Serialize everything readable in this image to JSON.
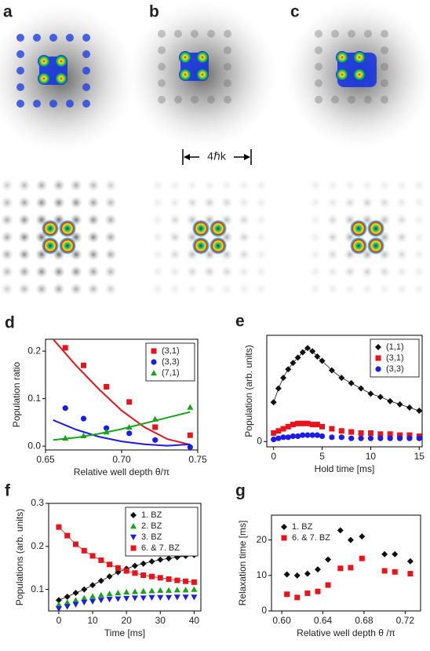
{
  "images": {
    "labels": [
      "a",
      "b",
      "c"
    ],
    "scale_label": "4ℏk"
  },
  "chart_data": [
    {
      "type": "scatter",
      "label": "d",
      "ylabel": "Population ratio",
      "xlabel": "Relative well depth  θ/π",
      "xlim": [
        0.65,
        0.75
      ],
      "xticks": [
        0.65,
        {
          "value": 0.7,
          "label": "0.70"
        },
        0.75
      ],
      "ylim": [
        -0.008,
        0.225
      ],
      "yticks": [
        {
          "value": 0,
          "label": "0.0"
        },
        0.1,
        0.2
      ],
      "legend": "top-right",
      "legend_box": true,
      "series": [
        {
          "name": "(3,1)",
          "color": "#e8141c",
          "marker": "square",
          "x": [
            0.663,
            0.675,
            0.69,
            0.705,
            0.722,
            0.745
          ],
          "values": [
            0.207,
            0.17,
            0.125,
            0.093,
            0.04,
            0.023
          ]
        },
        {
          "name": "(3,3)",
          "color": "#1c1ce6",
          "marker": "circle",
          "x": [
            0.663,
            0.675,
            0.69,
            0.705,
            0.722,
            0.745
          ],
          "values": [
            0.08,
            0.058,
            0.038,
            0.027,
            0.013,
            -0.002
          ]
        },
        {
          "name": "(7,1)",
          "color": "#1aa31a",
          "marker": "triangle",
          "x": [
            0.663,
            0.675,
            0.69,
            0.705,
            0.722,
            0.745
          ],
          "values": [
            0.017,
            0.022,
            0.03,
            0.04,
            0.057,
            0.082
          ]
        }
      ],
      "fits": [
        {
          "color": "#e8141c",
          "x": [
            0.655,
            0.67,
            0.685,
            0.7,
            0.715,
            0.73,
            0.745
          ],
          "values": [
            0.225,
            0.17,
            0.12,
            0.075,
            0.04,
            0.015,
            0.003
          ]
        },
        {
          "color": "#1c1ce6",
          "x": [
            0.655,
            0.67,
            0.685,
            0.7,
            0.715,
            0.73,
            0.745
          ],
          "values": [
            0.055,
            0.035,
            0.02,
            0.01,
            0.004,
            0.001,
            0.004
          ]
        },
        {
          "color": "#1aa31a",
          "x": [
            0.655,
            0.67,
            0.685,
            0.7,
            0.715,
            0.73,
            0.745
          ],
          "values": [
            0.013,
            0.018,
            0.026,
            0.036,
            0.048,
            0.06,
            0.072
          ]
        }
      ]
    },
    {
      "type": "scatter",
      "label": "e",
      "ylabel": "Population (arb. units)",
      "xlabel": "Hold time [ms]",
      "xlim": [
        -0.7,
        15.3
      ],
      "xticks": [
        0,
        5,
        10,
        15
      ],
      "ylim": [
        -0.05,
        1.0
      ],
      "yticks": [
        0
      ],
      "legend": "top-right",
      "legend_box": true,
      "series": [
        {
          "name": "(1,1)",
          "color": "#111111",
          "marker": "diamond",
          "line": true,
          "x": [
            0,
            0.5,
            1,
            1.5,
            2,
            2.5,
            3,
            3.5,
            4,
            4.5,
            5,
            6,
            7,
            8,
            9,
            10,
            11,
            12,
            13,
            14,
            15
          ],
          "values": [
            0.37,
            0.5,
            0.6,
            0.68,
            0.74,
            0.79,
            0.84,
            0.88,
            0.85,
            0.8,
            0.76,
            0.67,
            0.6,
            0.55,
            0.5,
            0.45,
            0.42,
            0.38,
            0.35,
            0.32,
            0.29
          ]
        },
        {
          "name": "(3,1)",
          "color": "#e8141c",
          "marker": "square",
          "x": [
            0,
            0.5,
            1,
            1.5,
            2,
            2.5,
            3,
            3.5,
            4,
            4.5,
            5,
            6,
            7,
            8,
            9,
            10,
            11,
            12,
            13,
            14,
            15
          ],
          "values": [
            0.08,
            0.1,
            0.12,
            0.14,
            0.16,
            0.17,
            0.17,
            0.17,
            0.16,
            0.16,
            0.14,
            0.12,
            0.1,
            0.09,
            0.08,
            0.08,
            0.07,
            0.07,
            0.06,
            0.06,
            0.05
          ]
        },
        {
          "name": "(3,3)",
          "color": "#1c1ce6",
          "marker": "circle",
          "x": [
            0,
            0.5,
            1,
            1.5,
            2,
            2.5,
            3,
            3.5,
            4,
            4.5,
            5,
            6,
            7,
            8,
            9,
            10,
            11,
            12,
            13,
            14,
            15
          ],
          "values": [
            0.02,
            0.03,
            0.04,
            0.04,
            0.05,
            0.05,
            0.06,
            0.06,
            0.06,
            0.06,
            0.05,
            0.04,
            0.04,
            0.03,
            0.03,
            0.03,
            0.03,
            0.03,
            0.03,
            0.03,
            0.03
          ]
        }
      ]
    },
    {
      "type": "scatter",
      "label": "f",
      "ylabel": "Populations (arb. units)",
      "xlabel": "Time [ms]",
      "xlim": [
        -3,
        42
      ],
      "xticks": [
        0,
        10,
        20,
        30,
        40
      ],
      "ylim": [
        0.05,
        0.3
      ],
      "yticks": [
        0.1,
        0.2,
        0.3
      ],
      "legend": "top-right",
      "legend_box": true,
      "series": [
        {
          "name": "1. BZ",
          "color": "#111111",
          "marker": "diamond",
          "line": true,
          "x": [
            0,
            2.5,
            5,
            7.5,
            10,
            12.5,
            15,
            17.5,
            20,
            22.5,
            25,
            27.5,
            30,
            32.5,
            35,
            37.5,
            40
          ],
          "values": [
            0.075,
            0.083,
            0.092,
            0.1,
            0.11,
            0.12,
            0.13,
            0.14,
            0.148,
            0.155,
            0.16,
            0.165,
            0.169,
            0.172,
            0.175,
            0.178,
            0.18
          ]
        },
        {
          "name": "2. BZ",
          "color": "#1aa31a",
          "marker": "triangle",
          "x": [
            0,
            2.5,
            5,
            7.5,
            10,
            12.5,
            15,
            17.5,
            20,
            22.5,
            25,
            27.5,
            30,
            32.5,
            35,
            37.5,
            40
          ],
          "values": [
            0.065,
            0.07,
            0.075,
            0.08,
            0.084,
            0.087,
            0.09,
            0.092,
            0.094,
            0.095,
            0.096,
            0.097,
            0.098,
            0.098,
            0.099,
            0.099,
            0.1
          ]
        },
        {
          "name": "3. BZ",
          "color": "#1c1ce6",
          "marker": "triangle-down",
          "x": [
            0,
            2.5,
            5,
            7.5,
            10,
            12.5,
            15,
            17.5,
            20,
            22.5,
            25,
            27.5,
            30,
            32.5,
            35,
            37.5,
            40
          ],
          "values": [
            0.055,
            0.06,
            0.065,
            0.07,
            0.072,
            0.075,
            0.077,
            0.078,
            0.079,
            0.08,
            0.08,
            0.081,
            0.081,
            0.081,
            0.082,
            0.082,
            0.082
          ]
        },
        {
          "name": "6. & 7. BZ",
          "color": "#e8141c",
          "marker": "square",
          "line": true,
          "x": [
            0,
            2.5,
            5,
            7.5,
            10,
            12.5,
            15,
            17.5,
            20,
            22.5,
            25,
            27.5,
            30,
            32.5,
            35,
            37.5,
            40
          ],
          "values": [
            0.245,
            0.225,
            0.205,
            0.19,
            0.178,
            0.168,
            0.158,
            0.15,
            0.143,
            0.138,
            0.133,
            0.13,
            0.127,
            0.124,
            0.121,
            0.119,
            0.117
          ]
        }
      ]
    },
    {
      "type": "scatter",
      "label": "g",
      "ylabel": "Relaxation time [ms]",
      "xlabel": "Relative well depth  θ /π",
      "xlim": [
        0.59,
        0.735
      ],
      "xticks": [
        {
          "value": 0.6,
          "label": "0.60"
        },
        0.64,
        0.68,
        0.72
      ],
      "ylim": [
        0,
        27
      ],
      "yticks": [
        0,
        10,
        20
      ],
      "legend": "top-left",
      "legend_box": false,
      "series": [
        {
          "name": "1. BZ",
          "color": "#111111",
          "marker": "diamond",
          "x": [
            0.605,
            0.615,
            0.625,
            0.635,
            0.645,
            0.657,
            0.667,
            0.678,
            0.7,
            0.71,
            0.725
          ],
          "values": [
            10.3,
            10,
            10.5,
            11.7,
            14.5,
            22.7,
            20,
            21,
            16,
            16,
            14
          ]
        },
        {
          "name": "6. & 7. BZ",
          "color": "#e8141c",
          "marker": "square",
          "x": [
            0.605,
            0.615,
            0.625,
            0.635,
            0.645,
            0.657,
            0.667,
            0.678,
            0.7,
            0.71,
            0.725
          ],
          "values": [
            4.7,
            3.8,
            5,
            5.5,
            7.3,
            12,
            12.2,
            14.8,
            11.3,
            11,
            10.5
          ]
        }
      ]
    }
  ]
}
